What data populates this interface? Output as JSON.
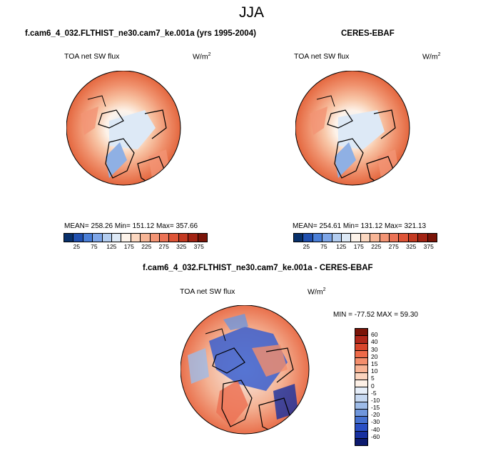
{
  "season": "JJA",
  "panel_left": {
    "title": "f.cam6_4_032.FLTHIST_ne30.cam7_ke.001a (yrs 1995-2004)",
    "var_label": "TOA net SW flux",
    "units": "W/m",
    "units_sup": "2",
    "stats": "MEAN= 258.26  Min= 151.12  Max= 357.66"
  },
  "panel_right": {
    "title": "CERES-EBAF",
    "var_label": "TOA net SW flux",
    "units": "W/m",
    "units_sup": "2",
    "stats": "MEAN= 254.61  Min= 131.12  Max= 321.13"
  },
  "panel_diff": {
    "title": "f.cam6_4_032.FLTHIST_ne30.cam7_ke.001a - CERES-EBAF",
    "var_label": "TOA net SW flux",
    "units": "W/m",
    "units_sup": "2",
    "stats": "MIN = -77.52 MAX = 59.30"
  },
  "colorbar_main": {
    "labels": [
      "25",
      "75",
      "125",
      "175",
      "225",
      "275",
      "325",
      "375"
    ],
    "colors": [
      "#08306b",
      "#2050b0",
      "#4a7fd8",
      "#7ea6e8",
      "#b3cdf0",
      "#dde9f6",
      "#fdf3ea",
      "#fbd7c0",
      "#f7b596",
      "#f39474",
      "#ec7356",
      "#de5437",
      "#c43a22",
      "#a32313",
      "#7a1408"
    ]
  },
  "colorbar_diff": {
    "labels": [
      "60",
      "40",
      "30",
      "20",
      "15",
      "10",
      "5",
      "0",
      "-5",
      "-10",
      "-15",
      "-20",
      "-30",
      "-40",
      "-60"
    ],
    "colors": [
      "#7a1408",
      "#b0271a",
      "#d8452b",
      "#ee6a49",
      "#f48e6c",
      "#f8b394",
      "#fbd4be",
      "#fdf0e6",
      "#e6eef9",
      "#c6d8f1",
      "#9dbbe8",
      "#6f96dc",
      "#4671d0",
      "#2a4fc4",
      "#1730a0",
      "#0c1a6e"
    ]
  },
  "icons": [
    "polar-map-model",
    "polar-map-obs",
    "polar-map-diff"
  ]
}
